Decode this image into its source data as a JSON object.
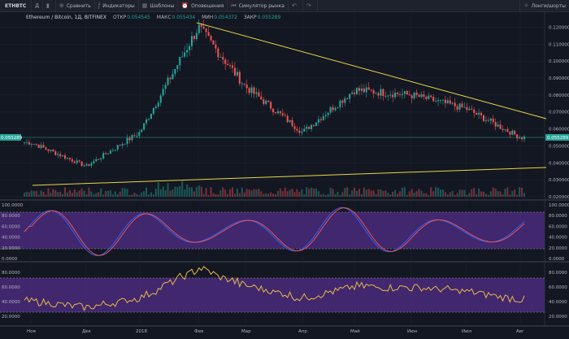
{
  "toolbar": {
    "symbol": "ETHBTC",
    "interval": "Д",
    "compare": "Сравнить",
    "indicators": "Индикаторы",
    "templates": "Шаблоны",
    "alerts": "Оповещения",
    "replay": "Симулятор рынка",
    "ideas": "Лонги/шорты"
  },
  "legend": {
    "title": "Ethereum / Bitcoin, 1Д, BITFINEX",
    "open_label": "ОТКР",
    "open": "0.054545",
    "high_label": "МАКС",
    "high": "0.055434",
    "low_label": "МИН",
    "low": "0.054372",
    "close_label": "ЗАКР",
    "close": "0.055289"
  },
  "price_axis": {
    "labels": [
      "0.120000",
      "0.110000",
      "0.100000",
      "0.090000",
      "0.080000",
      "0.070000",
      "0.060000",
      "0.050000",
      "0.040000",
      "0.030000",
      "0.020000"
    ],
    "current": "0.055289",
    "current_left": "0.055289"
  },
  "stoch_axis": {
    "labels": [
      "100.0000",
      "80.0000",
      "60.0000",
      "40.0000",
      "20.0000",
      "0.0000"
    ],
    "left_labels": [
      "100.0000",
      "80.0000",
      "60.0000",
      "40.0000",
      "20.0000",
      "0.0000"
    ]
  },
  "rsi_axis": {
    "labels": [
      "80.0000",
      "60.0000",
      "40.0000",
      "20.0000"
    ],
    "left_labels": [
      "80.0000",
      "60.0000",
      "40.0000",
      "20.0000"
    ]
  },
  "time_axis": [
    "Ноя",
    "Дек",
    "2018",
    "Фев",
    "Мар",
    "Апр",
    "Май",
    "Июн",
    "Июл",
    "Авг"
  ],
  "colors": {
    "up": "#26a69a",
    "down": "#ef5350",
    "trendline": "#e8d744",
    "stoch_k": "#2962ff",
    "stoch_d": "#ef5350",
    "rsi": "#e8b94a",
    "band": "#4a2a7a",
    "grid": "#2a2e39"
  },
  "chart_data": {
    "type": "line",
    "title": "Ethereum / Bitcoin, 1Д, BITFINEX",
    "x": [
      "Ноя",
      "Дек",
      "2018",
      "Фев",
      "Мар",
      "Апр",
      "Май",
      "Июн",
      "Июл",
      "Авг"
    ],
    "series": [
      {
        "values": [
          0.052,
          0.038,
          0.058,
          0.12,
          0.085,
          0.058,
          0.083,
          0.08,
          0.072,
          0.055
        ]
      }
    ],
    "ylim": [
      0.02,
      0.125
    ]
  }
}
